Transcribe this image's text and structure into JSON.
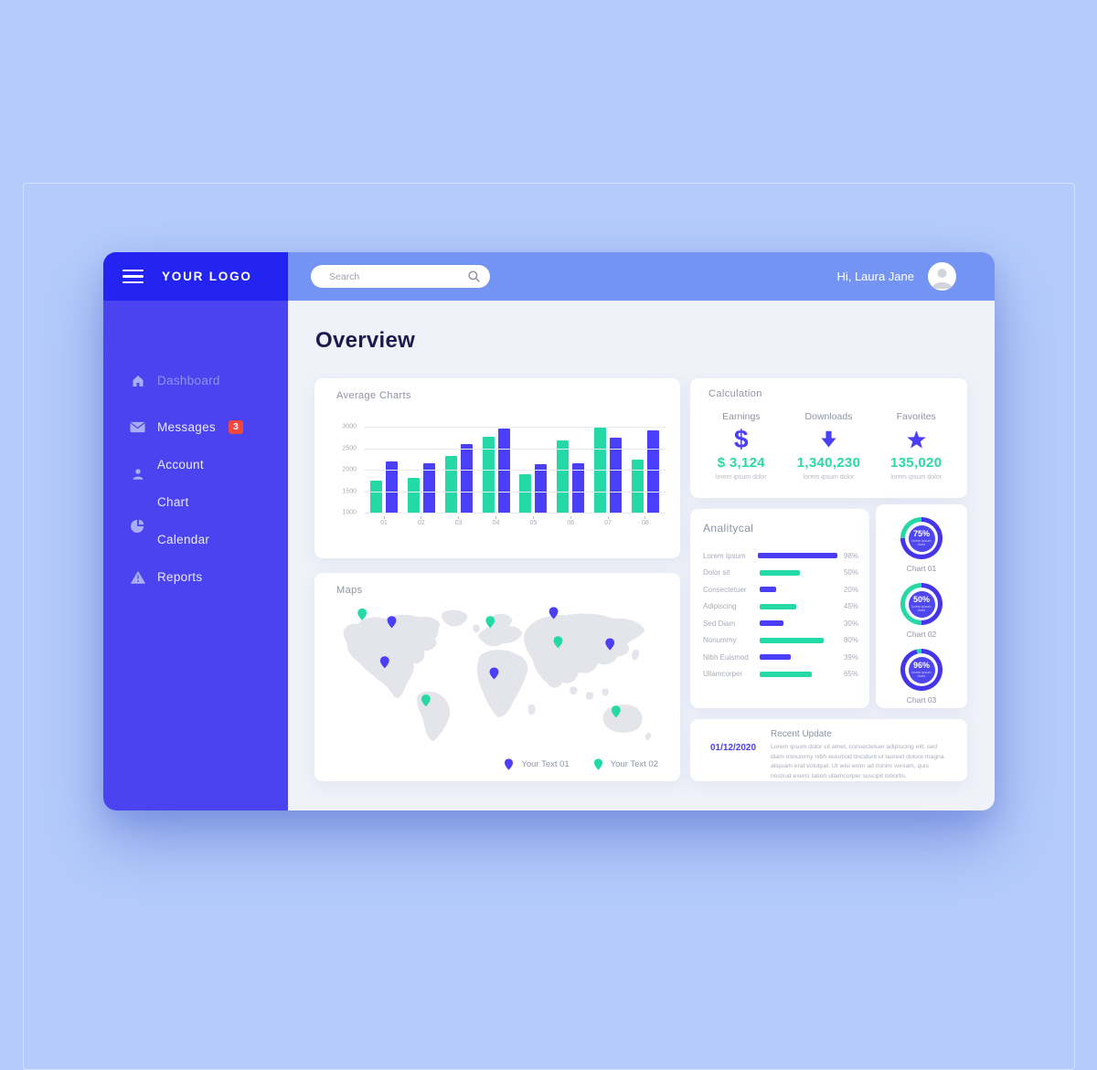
{
  "header": {
    "logo": "YOUR LOGO",
    "search_placeholder": "Search",
    "greeting": "Hi, Laura Jane"
  },
  "sidebar": {
    "items": [
      {
        "label": "Dashboard",
        "icon": "home"
      },
      {
        "label": "Messages",
        "icon": "envelope",
        "badge": "3"
      },
      {
        "label": "Account",
        "icon": "user"
      },
      {
        "label": "Chart",
        "icon": "none"
      },
      {
        "label": "Calendar",
        "icon": "pie"
      },
      {
        "label": "Reports",
        "icon": "warning"
      }
    ]
  },
  "main": {
    "title": "Overview"
  },
  "cards": {
    "average": {
      "title": "Average Charts"
    },
    "calculation": {
      "title": "Calculation",
      "stats": [
        {
          "label": "Earnings",
          "icon": "dollar",
          "value": "$ 3,124",
          "sub": "lorem ipsum dolor"
        },
        {
          "label": "Downloads",
          "icon": "arrow-down",
          "value": "1,340,230",
          "sub": "lorem ipsum dolor"
        },
        {
          "label": "Favorites",
          "icon": "star",
          "value": "135,020",
          "sub": "lorem ipsum dolor"
        }
      ]
    },
    "analytical": {
      "title": "Analitycal"
    },
    "maps": {
      "title": "Maps",
      "legend": [
        {
          "label": "Your Text 01",
          "color": "#4b3ef7"
        },
        {
          "label": "Your Text 02",
          "color": "#24d9a5"
        }
      ]
    },
    "recent": {
      "date": "01/12/2020",
      "title": "Recent Update",
      "body": "Lorem ipsum dolor sit amet, consectetuer adipiscing elit, sed diam nonummy nibh euismod tincidunt ut laoreet dolore magna aliquam erat volutpat. Ut wisi enim ad minim veniam, quis nostrud exerci tation ullamcorper suscipit lobortis."
    }
  },
  "chart_data": [
    {
      "type": "bar",
      "title": "Average Charts",
      "categories": [
        "01",
        "02",
        "03",
        "04",
        "05",
        "06",
        "07",
        "08"
      ],
      "series": [
        {
          "name": "green",
          "color": "#24d9a5",
          "values": [
            1750,
            1800,
            2320,
            2770,
            1900,
            2690,
            2980,
            2240
          ]
        },
        {
          "name": "blue",
          "color": "#4b3ef7",
          "values": [
            2200,
            2150,
            2600,
            2960,
            2130,
            2140,
            2750,
            2920
          ]
        }
      ],
      "ylim": [
        1000,
        3000
      ],
      "yticks": [
        1000,
        1500,
        2000,
        2500,
        3000
      ],
      "grid": true
    },
    {
      "type": "bar-horizontal",
      "title": "Analitycal",
      "xlim": [
        0,
        100
      ],
      "rows": [
        {
          "label": "Lorem Ipsum",
          "value": 98,
          "pct": "98%",
          "color": "#4b3ef7"
        },
        {
          "label": "Dolor sit",
          "value": 50,
          "pct": "50%",
          "color": "#24d9a5"
        },
        {
          "label": "Consectetuer",
          "value": 20,
          "pct": "20%",
          "color": "#4b3ef7"
        },
        {
          "label": "Adipiscing",
          "value": 45,
          "pct": "45%",
          "color": "#24d9a5"
        },
        {
          "label": "Sed Diam",
          "value": 30,
          "pct": "30%",
          "color": "#4b3ef7"
        },
        {
          "label": "Nonummy",
          "value": 80,
          "pct": "80%",
          "color": "#24d9a5"
        },
        {
          "label": "Nibh Euismod",
          "value": 39,
          "pct": "39%",
          "color": "#4b3ef7"
        },
        {
          "label": "Ullamcorper",
          "value": 65,
          "pct": "65%",
          "color": "#24d9a5"
        }
      ]
    },
    {
      "type": "donut-set",
      "ring_colors": {
        "filled": "#4435ec",
        "rest": "#24d9a5"
      },
      "items": [
        {
          "label": "Chart 01",
          "value": 75,
          "value_label": "75%",
          "sub": "lorem ipsum dolor"
        },
        {
          "label": "Chart 02",
          "value": 50,
          "value_label": "50%",
          "sub": "lorem ipsum dolor"
        },
        {
          "label": "Chart 03",
          "value": 96,
          "value_label": "96%",
          "sub": "lorem ipsum dolor"
        }
      ]
    },
    {
      "type": "map-pins",
      "units": "percent-of-map-area",
      "series": [
        {
          "name": "Your Text 01",
          "color": "#4b3ef7",
          "points": [
            [
              17.2,
              16
            ],
            [
              15,
              45
            ],
            [
              49,
              53
            ],
            [
              67.5,
              9.5
            ],
            [
              85,
              32
            ]
          ]
        },
        {
          "name": "Your Text 02",
          "color": "#24d9a5",
          "points": [
            [
              8,
              10.5
            ],
            [
              47.8,
              16
            ],
            [
              27.8,
              72.5
            ],
            [
              68.9,
              30.5
            ],
            [
              86.9,
              80.5
            ]
          ]
        }
      ]
    }
  ],
  "colors": {
    "accent_blue": "#4b3ef7",
    "accent_green": "#24d9a5",
    "badge_red": "#f2473f",
    "sidebar_top": "#2323f2",
    "sidebar_body": "#4a43ef",
    "topbar": "#7494f4",
    "page_bg": "#b5ccfb",
    "content_bg": "#f0f2f9",
    "title_navy": "#1b1b4f"
  }
}
